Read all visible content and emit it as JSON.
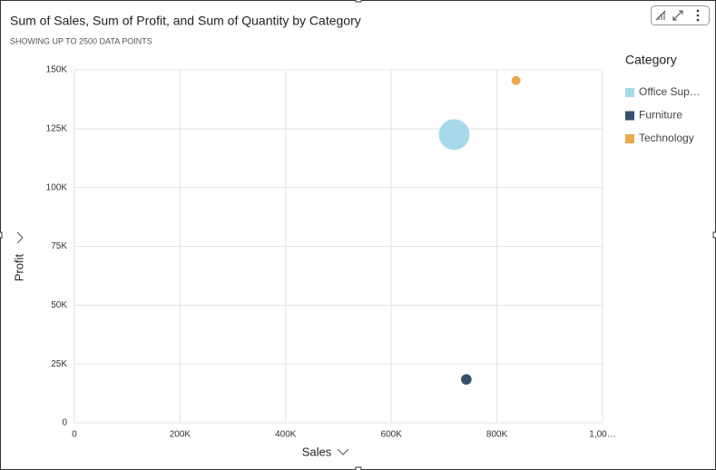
{
  "chart_data": {
    "type": "scatter",
    "title": "Sum of Sales, Sum of Profit, and Sum of Quantity by Category",
    "subtitle": "SHOWING UP TO 2500 DATA POINTS",
    "x_label": "Sales",
    "y_label": "Profit",
    "legend_title": "Category",
    "legend_position": "right",
    "grid": true,
    "xlim": [
      0,
      1000000
    ],
    "xticks": [
      0,
      {
        "value": 200000,
        "label": "200K"
      },
      {
        "value": 400000,
        "label": "400K"
      },
      {
        "value": 600000,
        "label": "600K"
      },
      {
        "value": 800000,
        "label": "800K"
      },
      {
        "value": 1000000,
        "label": "1,00…"
      }
    ],
    "ylim": [
      0,
      150000
    ],
    "yticks": [
      0,
      {
        "value": 25000,
        "label": "25K"
      },
      {
        "value": 50000,
        "label": "50K"
      },
      {
        "value": 75000,
        "label": "75K"
      },
      {
        "value": 100000,
        "label": "100K"
      },
      {
        "value": 125000,
        "label": "125K"
      },
      {
        "value": 150000,
        "label": "150K"
      }
    ],
    "series": [
      {
        "name": "Office Sup…",
        "color": "#a6daeb",
        "x": [
          719047
        ],
        "values": [
          122491
        ],
        "sizes": [
          22906
        ]
      },
      {
        "name": "Furniture",
        "color": "#33506a",
        "x": [
          742000
        ],
        "values": [
          18451
        ],
        "sizes": [
          8028
        ]
      },
      {
        "name": "Technology",
        "color": "#e8a94d",
        "x": [
          836154
        ],
        "values": [
          145455
        ],
        "sizes": [
          6939
        ]
      }
    ]
  }
}
